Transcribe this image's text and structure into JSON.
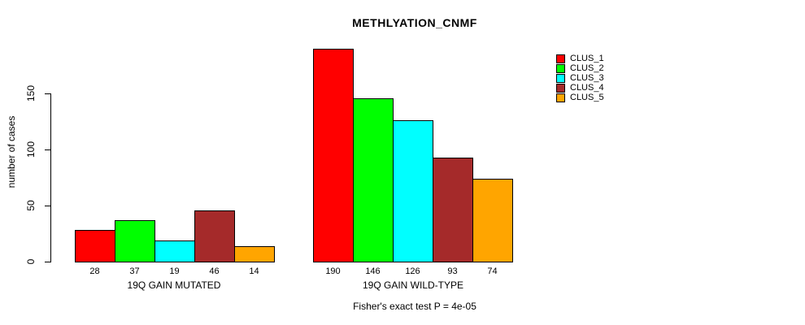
{
  "title": "METHLYATION_CNMF",
  "footer": "Fisher's exact test P = 4e-05",
  "legend": {
    "items": [
      {
        "label": "CLUS_1",
        "color": "#FF0000"
      },
      {
        "label": "CLUS_2",
        "color": "#00FF00"
      },
      {
        "label": "CLUS_3",
        "color": "#00FFFF"
      },
      {
        "label": "CLUS_4",
        "color": "#A52A2A"
      },
      {
        "label": "CLUS_5",
        "color": "#FFA500"
      }
    ]
  },
  "chart_data": {
    "type": "bar",
    "title": "METHLYATION_CNMF",
    "xlabel": "",
    "ylabel": "number of cases",
    "yticks": [
      0,
      50,
      100,
      150
    ],
    "ylim": [
      0,
      190
    ],
    "grid": false,
    "legend_position": "right",
    "series": [
      "CLUS_1",
      "CLUS_2",
      "CLUS_3",
      "CLUS_4",
      "CLUS_5"
    ],
    "series_colors": [
      "#FF0000",
      "#00FF00",
      "#00FFFF",
      "#A52A2A",
      "#FFA500"
    ],
    "groups": [
      {
        "label": "19Q GAIN MUTATED",
        "values": [
          28,
          37,
          19,
          46,
          14
        ]
      },
      {
        "label": "19Q GAIN WILD-TYPE",
        "values": [
          190,
          146,
          126,
          93,
          74
        ]
      }
    ],
    "annotation": "Fisher's exact test P = 4e-05"
  }
}
